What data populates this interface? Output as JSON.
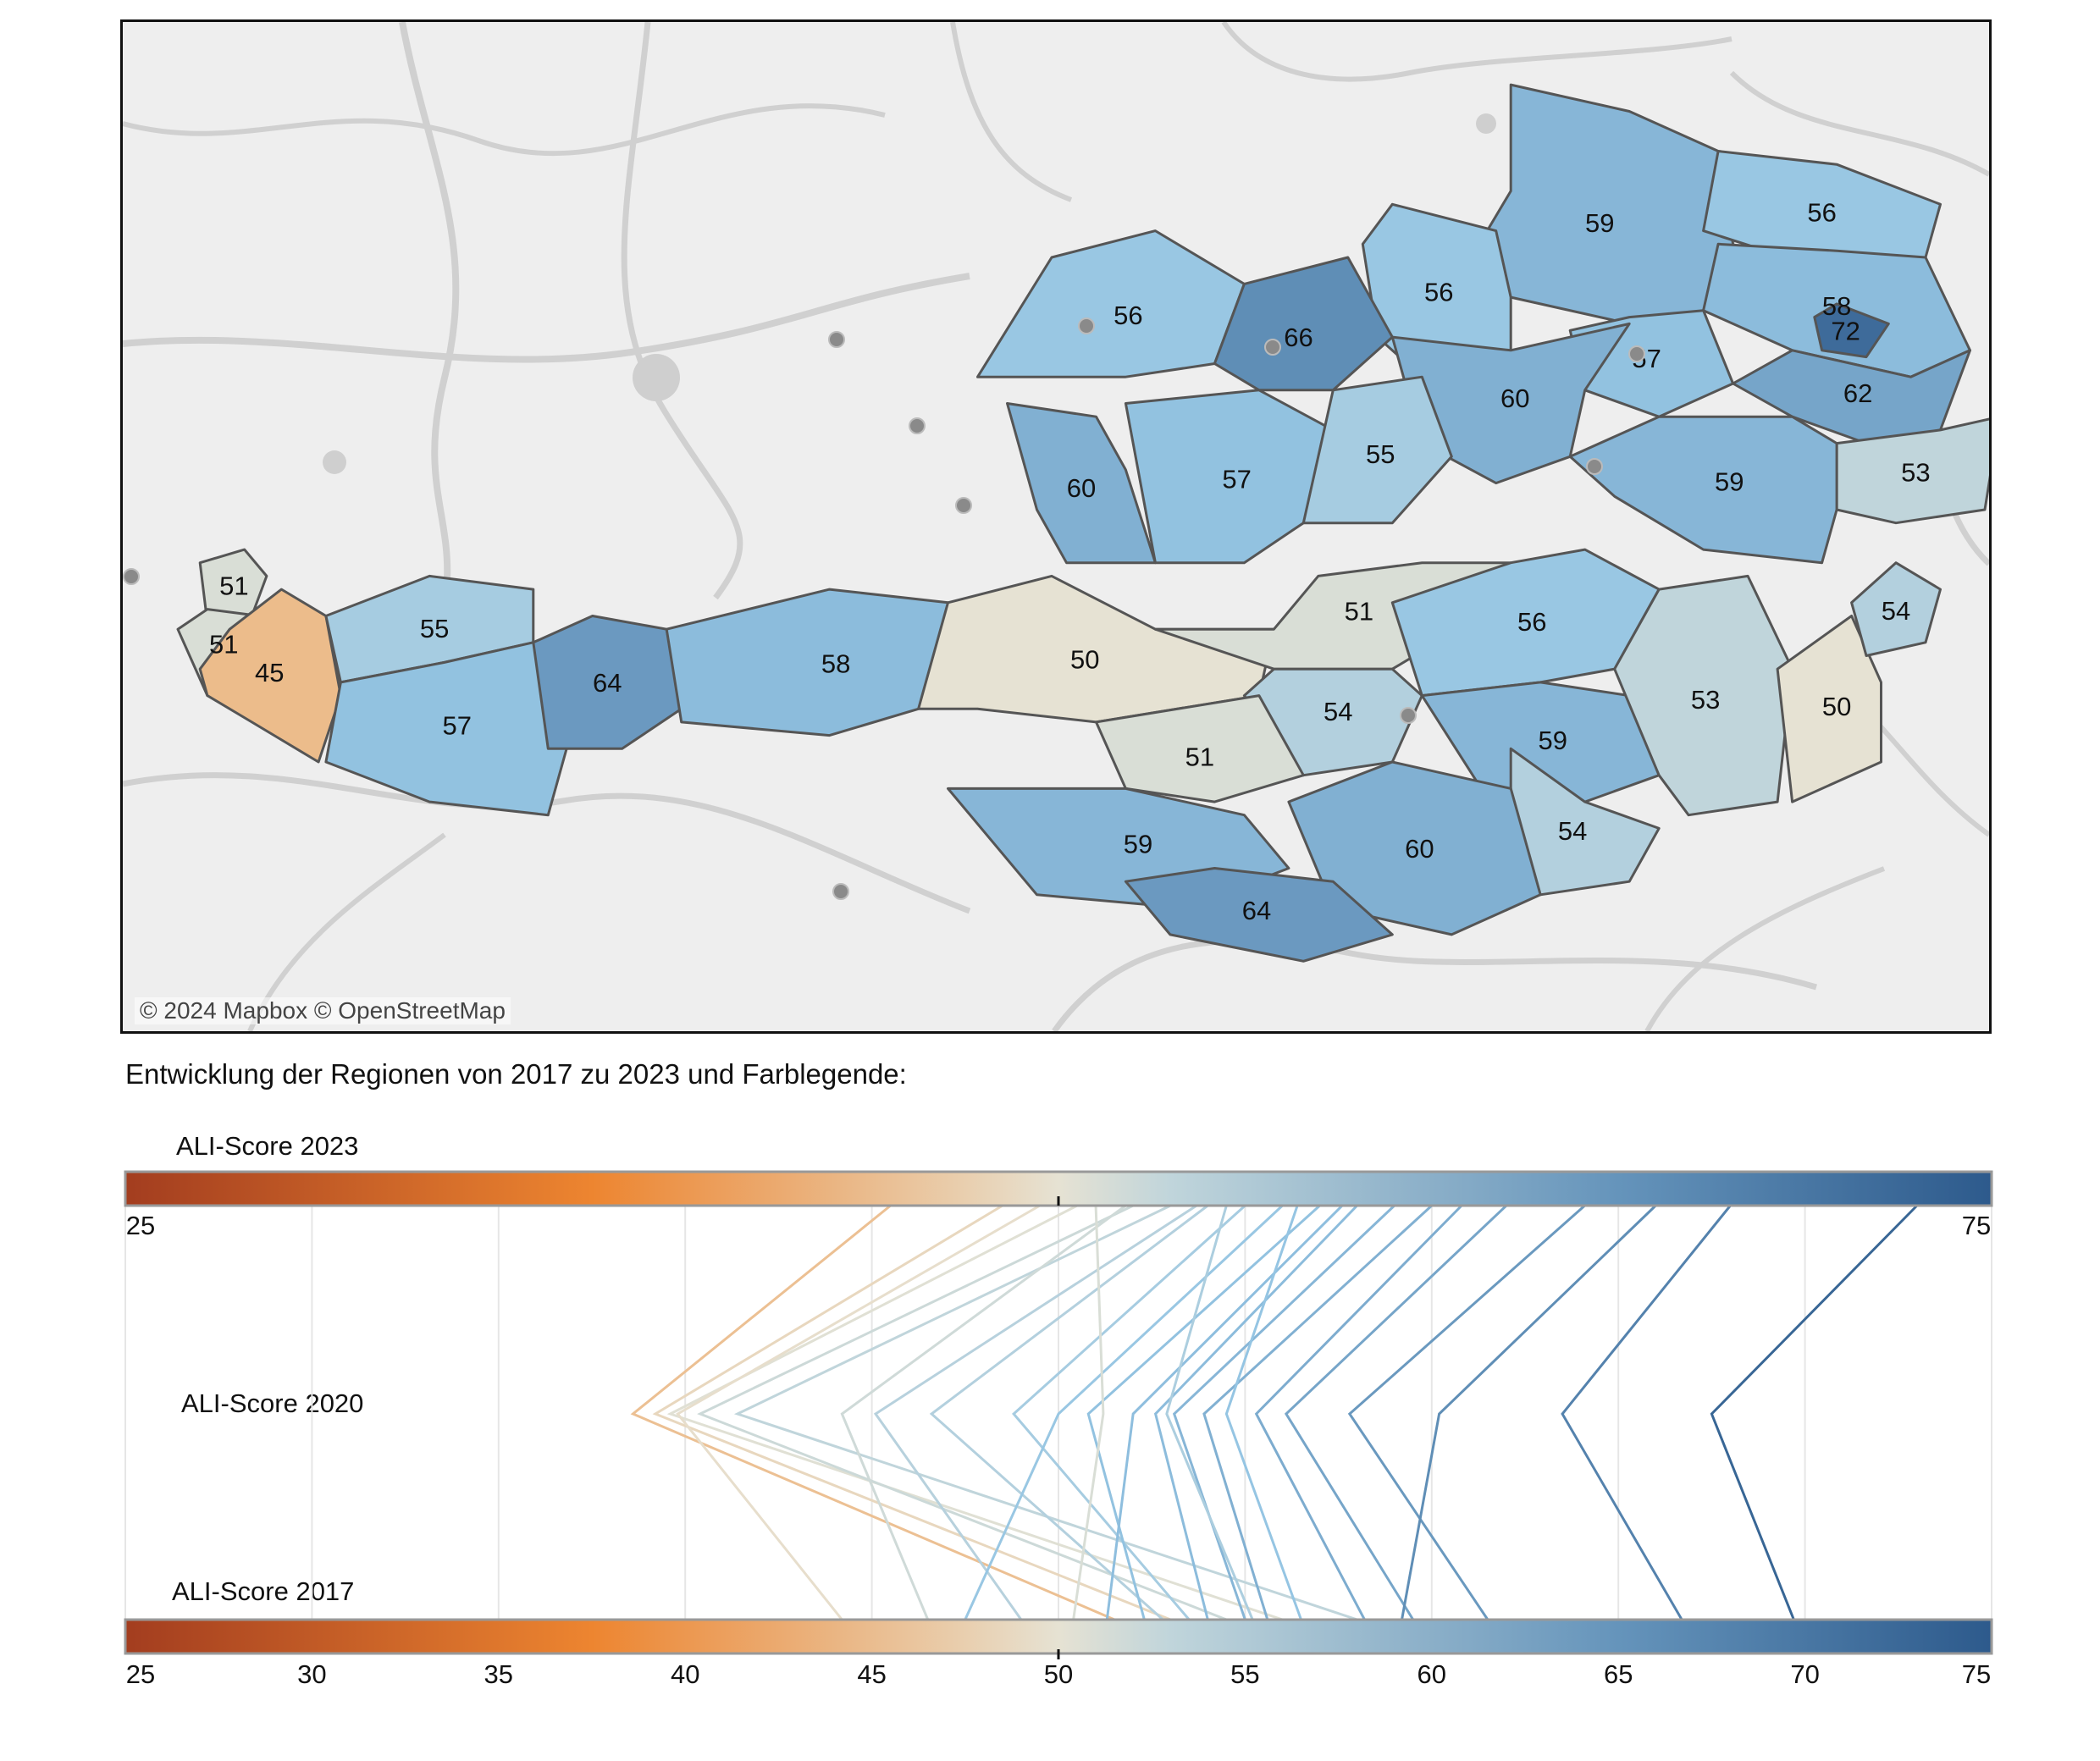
{
  "map": {
    "attribution": "© 2024 Mapbox © OpenStreetMap",
    "region_scores": [
      {
        "id": "r01",
        "score": 59
      },
      {
        "id": "r02",
        "score": 56
      },
      {
        "id": "r03",
        "score": 56
      },
      {
        "id": "r04",
        "score": 56
      },
      {
        "id": "r05",
        "score": 66
      },
      {
        "id": "r06",
        "score": 58
      },
      {
        "id": "r07",
        "score": 72
      },
      {
        "id": "r08",
        "score": 57
      },
      {
        "id": "r09",
        "score": 60
      },
      {
        "id": "r10",
        "score": 62
      },
      {
        "id": "r11",
        "score": 53
      },
      {
        "id": "r12",
        "score": 60
      },
      {
        "id": "r13",
        "score": 57
      },
      {
        "id": "r14",
        "score": 55
      },
      {
        "id": "r15",
        "score": 59
      },
      {
        "id": "r16",
        "score": 51
      },
      {
        "id": "r17",
        "score": 51
      },
      {
        "id": "r18",
        "score": 45
      },
      {
        "id": "r19",
        "score": 55
      },
      {
        "id": "r20",
        "score": 57
      },
      {
        "id": "r21",
        "score": 64
      },
      {
        "id": "r22",
        "score": 58
      },
      {
        "id": "r23",
        "score": 50
      },
      {
        "id": "r24",
        "score": 51
      },
      {
        "id": "r25",
        "score": 56
      },
      {
        "id": "r26",
        "score": 54
      },
      {
        "id": "r27",
        "score": 51
      },
      {
        "id": "r28",
        "score": 59
      },
      {
        "id": "r29",
        "score": 53
      },
      {
        "id": "r30",
        "score": 50
      },
      {
        "id": "r31",
        "score": 54
      },
      {
        "id": "r32",
        "score": 54
      },
      {
        "id": "r33",
        "score": 59
      },
      {
        "id": "r34",
        "score": 60
      },
      {
        "id": "r35",
        "score": 64
      }
    ]
  },
  "caption": "Entwicklung der Regionen von 2017 zu 2023 und Farblegende:",
  "chart_data": {
    "type": "line",
    "axes": [
      {
        "name": "ALI-Score 2023",
        "range": [
          25,
          75
        ],
        "tick_labels": [
          "25",
          "75"
        ],
        "marker": 50
      },
      {
        "name": "ALI-Score 2020",
        "range": [
          25,
          75
        ]
      },
      {
        "name": "ALI-Score 2017",
        "range": [
          25,
          75
        ],
        "tick_labels": [
          "25",
          "30",
          "35",
          "40",
          "45",
          "50",
          "55",
          "60",
          "65",
          "70",
          "75"
        ],
        "marker": 50
      }
    ],
    "color_scale": {
      "low": 25,
      "mid": 50,
      "high": 75,
      "low_color": "#a33d1f",
      "mid_color": "#e6e2d3",
      "high_color": "#2d5a8c"
    },
    "regions": [
      {
        "s2023": 45.5,
        "s2020": 38.6,
        "s2017": 51.5
      },
      {
        "s2023": 48.5,
        "s2020": 39.2,
        "s2017": 53
      },
      {
        "s2023": 50.5,
        "s2020": 39.6,
        "s2017": 56
      },
      {
        "s2023": 52,
        "s2020": 40.4,
        "s2017": 54.5
      },
      {
        "s2023": 53,
        "s2020": 41.4,
        "s2017": 58
      },
      {
        "s2023": 49.5,
        "s2020": 39.8,
        "s2017": 44.2
      },
      {
        "s2023": 51.8,
        "s2020": 44.2,
        "s2017": 46.5
      },
      {
        "s2023": 53.7,
        "s2020": 45.1,
        "s2017": 49
      },
      {
        "s2023": 54,
        "s2020": 46.6,
        "s2017": 52.8
      },
      {
        "s2023": 55,
        "s2020": 48.8,
        "s2017": 53.5
      },
      {
        "s2023": 56,
        "s2020": 50,
        "s2017": 47.5
      },
      {
        "s2023": 57,
        "s2020": 50.8,
        "s2017": 52.3
      },
      {
        "s2023": 57.6,
        "s2020": 52,
        "s2017": 51.3
      },
      {
        "s2023": 58,
        "s2020": 52.6,
        "s2017": 54
      },
      {
        "s2023": 59,
        "s2020": 53.1,
        "s2017": 55
      },
      {
        "s2023": 60,
        "s2020": 53.9,
        "s2017": 55.6
      },
      {
        "s2023": 60.8,
        "s2020": 55.3,
        "s2017": 58.2
      },
      {
        "s2023": 62,
        "s2020": 56.1,
        "s2017": 59.5
      },
      {
        "s2023": 64.1,
        "s2020": 57.8,
        "s2017": 61.5
      },
      {
        "s2023": 66,
        "s2020": 60.2,
        "s2017": 59.2
      },
      {
        "s2023": 68,
        "s2020": 63.5,
        "s2017": 66.7
      },
      {
        "s2023": 73,
        "s2020": 67.5,
        "s2017": 69.7
      },
      {
        "s2023": 51,
        "s2020": 51.2,
        "s2017": 50.4
      },
      {
        "s2023": 54.5,
        "s2020": 52.9,
        "s2017": 55.2
      },
      {
        "s2023": 56.4,
        "s2020": 54.5,
        "s2017": 56.5
      }
    ]
  }
}
